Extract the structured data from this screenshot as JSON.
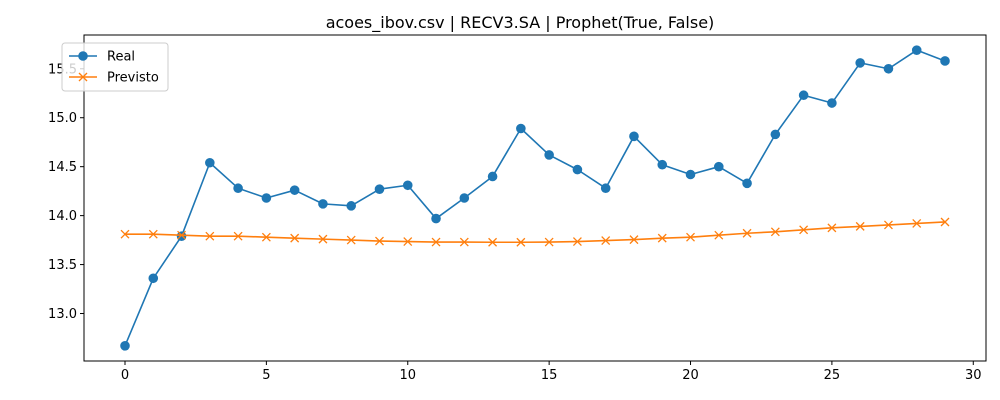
{
  "chart_data": {
    "type": "line",
    "title": "acoes_ibov.csv | RECV3.SA | Prophet(True, False)",
    "xlabel": "",
    "ylabel": "",
    "xlim": [
      -1.45,
      30.45
    ],
    "ylim": [
      12.515,
      15.845
    ],
    "xticks": [
      0,
      5,
      10,
      15,
      20,
      25,
      30
    ],
    "yticks": [
      13.0,
      13.5,
      14.0,
      14.5,
      15.0,
      15.5
    ],
    "ytick_labels": [
      "13.0",
      "13.5",
      "14.0",
      "14.5",
      "15.0",
      "15.5"
    ],
    "grid": false,
    "legend_position": "top-left",
    "x": [
      0,
      1,
      2,
      3,
      4,
      5,
      6,
      7,
      8,
      9,
      10,
      11,
      12,
      13,
      14,
      15,
      16,
      17,
      18,
      19,
      20,
      21,
      22,
      23,
      24,
      25,
      26,
      27,
      28,
      29
    ],
    "series": [
      {
        "name": "Real",
        "color": "#1f77b4",
        "marker": "circle",
        "values": [
          12.67,
          13.36,
          13.79,
          14.54,
          14.28,
          14.18,
          14.26,
          14.12,
          14.1,
          14.27,
          14.31,
          13.97,
          14.18,
          14.4,
          14.89,
          14.62,
          14.47,
          14.28,
          14.81,
          14.52,
          14.42,
          14.5,
          14.33,
          14.83,
          15.23,
          15.15,
          15.56,
          15.5,
          15.69,
          15.58
        ]
      },
      {
        "name": "Previsto",
        "color": "#ff7f0e",
        "marker": "x",
        "values": [
          13.81,
          13.81,
          13.8,
          13.79,
          13.79,
          13.78,
          13.77,
          13.76,
          13.75,
          13.74,
          13.735,
          13.73,
          13.73,
          13.728,
          13.728,
          13.73,
          13.735,
          13.745,
          13.755,
          13.77,
          13.78,
          13.8,
          13.82,
          13.835,
          13.855,
          13.875,
          13.89,
          13.905,
          13.92,
          13.935
        ]
      }
    ]
  }
}
